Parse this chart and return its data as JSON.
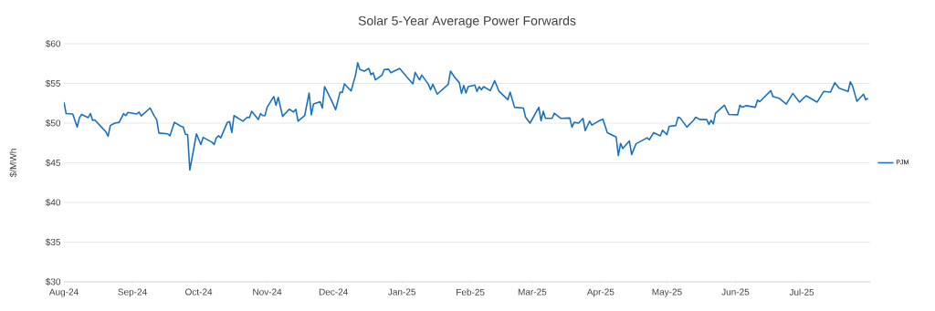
{
  "chart_data": {
    "type": "line",
    "title": "Solar 5-Year Average Power Forwards",
    "ylabel": "$/MWh",
    "x": [
      "2024-08-01",
      "2024-08-02",
      "2024-08-05",
      "2024-08-07",
      "2024-08-08",
      "2024-08-09",
      "2024-08-12",
      "2024-08-13",
      "2024-08-14",
      "2024-08-15",
      "2024-08-18",
      "2024-08-20",
      "2024-08-21",
      "2024-08-22",
      "2024-08-24",
      "2024-08-26",
      "2024-08-28",
      "2024-08-29",
      "2024-08-30",
      "2024-09-03",
      "2024-09-04",
      "2024-09-05",
      "2024-09-09",
      "2024-09-11",
      "2024-09-12",
      "2024-09-13",
      "2024-09-17",
      "2024-09-18",
      "2024-09-20",
      "2024-09-23",
      "2024-09-24",
      "2024-09-25",
      "2024-09-26",
      "2024-09-27",
      "2024-09-30",
      "2024-10-02",
      "2024-10-03",
      "2024-10-07",
      "2024-10-08",
      "2024-10-09",
      "2024-10-10",
      "2024-10-11",
      "2024-10-14",
      "2024-10-15",
      "2024-10-16",
      "2024-10-17",
      "2024-10-21",
      "2024-10-23",
      "2024-10-24",
      "2024-10-25",
      "2024-10-28",
      "2024-10-29",
      "2024-10-30",
      "2024-10-31",
      "2024-11-01",
      "2024-11-04",
      "2024-11-05",
      "2024-11-06",
      "2024-11-08",
      "2024-11-11",
      "2024-11-13",
      "2024-11-14",
      "2024-11-15",
      "2024-11-18",
      "2024-11-20",
      "2024-11-21",
      "2024-11-22",
      "2024-11-25",
      "2024-11-26",
      "2024-11-27",
      "2024-11-30",
      "2024-12-02",
      "2024-12-04",
      "2024-12-05",
      "2024-12-06",
      "2024-12-09",
      "2024-12-11",
      "2024-12-12",
      "2024-12-13",
      "2024-12-15",
      "2024-12-17",
      "2024-12-18",
      "2024-12-19",
      "2024-12-20",
      "2024-12-23",
      "2024-12-24",
      "2024-12-26",
      "2024-12-27",
      "2024-12-31",
      "2025-01-03",
      "2025-01-06",
      "2025-01-07",
      "2025-01-09",
      "2025-01-10",
      "2025-01-13",
      "2025-01-14",
      "2025-01-15",
      "2025-01-17",
      "2025-01-22",
      "2025-01-23",
      "2025-01-25",
      "2025-01-27",
      "2025-01-28",
      "2025-01-29",
      "2025-01-30",
      "2025-01-31",
      "2025-02-03",
      "2025-02-04",
      "2025-02-05",
      "2025-02-06",
      "2025-02-07",
      "2025-02-10",
      "2025-02-12",
      "2025-02-14",
      "2025-02-18",
      "2025-02-19",
      "2025-02-21",
      "2025-02-25",
      "2025-02-26",
      "2025-02-28",
      "2025-03-04",
      "2025-03-05",
      "2025-03-06",
      "2025-03-07",
      "2025-03-10",
      "2025-03-11",
      "2025-03-14",
      "2025-03-18",
      "2025-03-19",
      "2025-03-20",
      "2025-03-22",
      "2025-03-24",
      "2025-03-25",
      "2025-03-27",
      "2025-03-28",
      "2025-03-31",
      "2025-04-02",
      "2025-04-04",
      "2025-04-08",
      "2025-04-09",
      "2025-04-10",
      "2025-04-11",
      "2025-04-14",
      "2025-04-15",
      "2025-04-17",
      "2025-04-22",
      "2025-04-23",
      "2025-04-25",
      "2025-04-28",
      "2025-04-29",
      "2025-05-01",
      "2025-05-02",
      "2025-05-05",
      "2025-05-06",
      "2025-05-07",
      "2025-05-10",
      "2025-05-13",
      "2025-05-14",
      "2025-05-16",
      "2025-05-19",
      "2025-05-20",
      "2025-05-21",
      "2025-05-22",
      "2025-05-23",
      "2025-05-27",
      "2025-05-29",
      "2025-06-02",
      "2025-06-03",
      "2025-06-04",
      "2025-06-06",
      "2025-06-10",
      "2025-06-11",
      "2025-06-12",
      "2025-06-17",
      "2025-06-18",
      "2025-06-21",
      "2025-06-24",
      "2025-06-27",
      "2025-06-30",
      "2025-07-03",
      "2025-07-08",
      "2025-07-11",
      "2025-07-14",
      "2025-07-16",
      "2025-07-18",
      "2025-07-22",
      "2025-07-23",
      "2025-07-24",
      "2025-07-26",
      "2025-07-29",
      "2025-07-30",
      "2025-07-31"
    ],
    "series": [
      {
        "name": "PJM",
        "color": "#1a71c1",
        "values": [
          52.65,
          51.2,
          51.15,
          49.5,
          50.65,
          51.1,
          50.7,
          51.2,
          50.35,
          50.4,
          49.5,
          48.9,
          48.35,
          49.7,
          50.0,
          50.1,
          51.2,
          50.95,
          51.35,
          51.15,
          51.4,
          50.9,
          51.9,
          50.85,
          50.45,
          48.75,
          48.65,
          48.4,
          50.1,
          49.6,
          49.5,
          48.6,
          48.55,
          44.1,
          48.65,
          47.3,
          48.2,
          47.6,
          47.3,
          48.15,
          48.4,
          48.15,
          50.1,
          50.2,
          48.8,
          50.95,
          50.25,
          50.75,
          50.7,
          51.5,
          50.45,
          51.2,
          50.95,
          50.95,
          52.0,
          53.35,
          52.25,
          53.25,
          50.85,
          51.75,
          51.4,
          51.75,
          50.25,
          50.95,
          53.8,
          51.05,
          52.4,
          52.7,
          51.9,
          54.6,
          52.95,
          51.7,
          53.9,
          53.85,
          54.95,
          54.05,
          56.05,
          57.6,
          56.75,
          56.55,
          56.9,
          56.1,
          56.35,
          55.45,
          56.05,
          56.75,
          56.8,
          56.35,
          56.9,
          55.9,
          54.95,
          56.4,
          55.45,
          56.05,
          54.9,
          54.2,
          54.9,
          53.65,
          54.9,
          56.55,
          55.75,
          55.1,
          53.75,
          54.75,
          53.8,
          54.6,
          54.8,
          54.0,
          54.6,
          54.2,
          54.6,
          54.1,
          55.35,
          54.0,
          52.95,
          53.9,
          52.0,
          51.9,
          50.75,
          50.0,
          52.0,
          50.3,
          51.5,
          50.6,
          50.6,
          51.25,
          50.6,
          50.65,
          49.5,
          50.1,
          50.0,
          50.6,
          49.05,
          50.25,
          49.75,
          50.25,
          50.5,
          48.8,
          48.25,
          45.9,
          47.45,
          46.8,
          47.75,
          46.05,
          47.4,
          48.15,
          47.9,
          48.8,
          48.4,
          49.1,
          48.55,
          49.6,
          49.7,
          50.75,
          50.65,
          49.5,
          50.35,
          50.75,
          50.45,
          50.45,
          49.85,
          50.35,
          49.9,
          51.25,
          52.25,
          51.1,
          51.05,
          52.25,
          52.0,
          52.2,
          52.0,
          52.9,
          52.7,
          54.1,
          53.35,
          53.1,
          52.4,
          53.75,
          52.65,
          53.45,
          52.65,
          54.0,
          53.9,
          55.1,
          54.4,
          54.0,
          55.2,
          54.7,
          52.75,
          53.65,
          52.95,
          53.15
        ]
      }
    ],
    "xlim": [
      "2024-08-01",
      "2025-08-01"
    ],
    "xticks": [
      {
        "value": "2024-08-01",
        "label": "Aug-24"
      },
      {
        "value": "2024-09-01",
        "label": "Sep-24"
      },
      {
        "value": "2024-10-01",
        "label": "Oct-24"
      },
      {
        "value": "2024-11-01",
        "label": "Nov-24"
      },
      {
        "value": "2024-12-01",
        "label": "Dec-24"
      },
      {
        "value": "2025-01-01",
        "label": "Jan-25"
      },
      {
        "value": "2025-02-01",
        "label": "Feb-25"
      },
      {
        "value": "2025-03-01",
        "label": "Mar-25"
      },
      {
        "value": "2025-04-01",
        "label": "Apr-25"
      },
      {
        "value": "2025-05-01",
        "label": "May-25"
      },
      {
        "value": "2025-06-01",
        "label": "Jun-25"
      },
      {
        "value": "2025-07-01",
        "label": "Jul-25"
      }
    ],
    "ylim": [
      30,
      60
    ],
    "yticks": [
      {
        "value": 30,
        "label": "$30"
      },
      {
        "value": 35,
        "label": "$35"
      },
      {
        "value": 40,
        "label": "$40"
      },
      {
        "value": 45,
        "label": "$45"
      },
      {
        "value": 50,
        "label": "$50"
      },
      {
        "value": 55,
        "label": "$55"
      },
      {
        "value": 60,
        "label": "$60"
      }
    ],
    "grid": "y",
    "legend": "right",
    "marker": "none"
  }
}
